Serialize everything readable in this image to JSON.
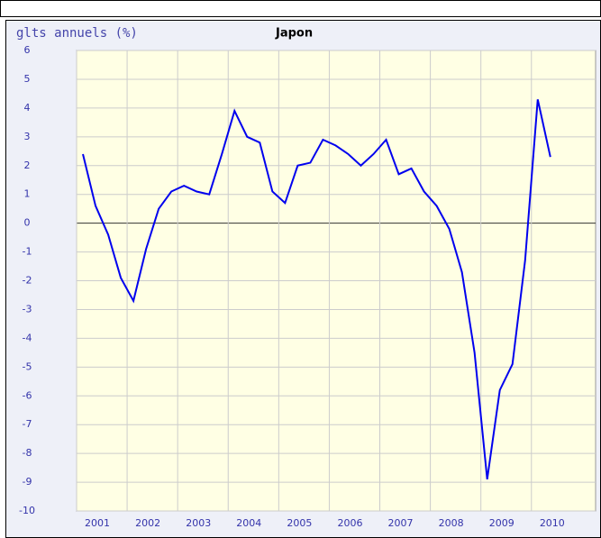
{
  "chart_data": {
    "type": "line",
    "title": "Japon",
    "ylabel": "glts annuels (%)",
    "x": [
      2001.125,
      2001.375,
      2001.625,
      2001.875,
      2002.125,
      2002.375,
      2002.625,
      2002.875,
      2003.125,
      2003.375,
      2003.625,
      2003.875,
      2004.125,
      2004.375,
      2004.625,
      2004.875,
      2005.125,
      2005.375,
      2005.625,
      2005.875,
      2006.125,
      2006.375,
      2006.625,
      2006.875,
      2007.125,
      2007.375,
      2007.625,
      2007.875,
      2008.125,
      2008.375,
      2008.625,
      2008.875,
      2009.125,
      2009.375,
      2009.625,
      2009.875,
      2010.125,
      2010.375
    ],
    "series": [
      {
        "name": "Japon",
        "color": "#0000ee",
        "values": [
          2.4,
          0.6,
          -0.4,
          -1.9,
          -2.7,
          -0.9,
          0.5,
          1.1,
          1.3,
          1.1,
          1.0,
          2.4,
          3.9,
          3.0,
          2.8,
          1.1,
          0.7,
          2.0,
          2.1,
          2.9,
          2.7,
          2.4,
          2.0,
          2.4,
          2.9,
          1.7,
          1.9,
          1.1,
          0.6,
          -0.2,
          -1.7,
          -4.5,
          -8.9,
          -5.8,
          -4.9,
          -1.3,
          4.3,
          2.3
        ]
      }
    ],
    "xlim": [
      2001,
      2011.27
    ],
    "xticks": [
      2001,
      2002,
      2003,
      2004,
      2005,
      2006,
      2007,
      2008,
      2009,
      2010
    ],
    "ylim": [
      -10,
      6
    ],
    "yticks": [
      -10,
      -9,
      -8,
      -7,
      -6,
      -5,
      -4,
      -3,
      -2,
      -1,
      0,
      1,
      2,
      3,
      4,
      5,
      6
    ],
    "grid": true
  }
}
